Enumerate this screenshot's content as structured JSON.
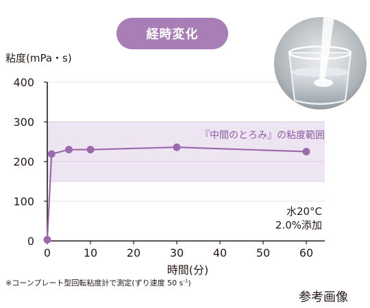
{
  "badge": {
    "label": "経時変化"
  },
  "chart_data": {
    "type": "line",
    "ylabel": "粘度(mPa・s)",
    "xlabel": "時間(分)",
    "xlim": [
      0,
      60
    ],
    "ylim": [
      0,
      400
    ],
    "x_ticks": [
      0,
      10,
      20,
      30,
      40,
      50,
      60
    ],
    "y_ticks": [
      0,
      100,
      200,
      300,
      400
    ],
    "series": [
      {
        "x": [
          0,
          1,
          5,
          10,
          30,
          60
        ],
        "values": [
          3,
          219,
          230,
          230,
          236,
          225
        ]
      }
    ],
    "band": {
      "y0": 150,
      "y1": 300,
      "label": "『中間のとろみ』の粘度範囲"
    },
    "band_line": 200,
    "annotation": {
      "line1": "水20°C",
      "line2": "2.0%添加"
    },
    "colors": {
      "line": "#9b6aad",
      "band": "#eee5f2",
      "band_line": "#dccbe5",
      "band_text": "#8c5aa2",
      "grid": "#e3e3e3",
      "axis": "#231815"
    }
  },
  "footnote": {
    "text": "※コーンプレート型回転粘度計で測定(ずり速度 50 s",
    "sup": "-1",
    "close": ")"
  },
  "reference": {
    "label": "参考画像"
  },
  "photo": {
    "subject": "glass-of-water-powder-icon"
  }
}
